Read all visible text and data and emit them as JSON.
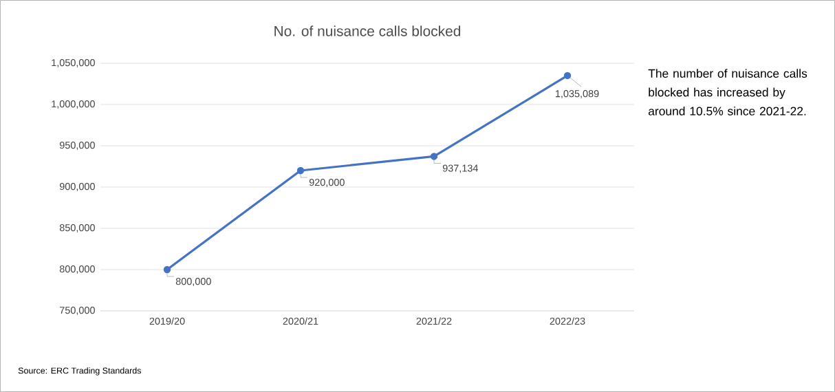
{
  "chart_data": {
    "type": "line",
    "title": "No. of nuisance calls blocked",
    "categories": [
      "2019/20",
      "2020/21",
      "2021/22",
      "2022/23"
    ],
    "series": [
      {
        "color": "#4472c4",
        "values": [
          800000,
          920000,
          937134,
          1035089
        ],
        "value_labels": [
          "800,000",
          "920,000",
          "937,134",
          "1,035,089"
        ]
      }
    ],
    "ylim": [
      750000,
      1050000
    ],
    "yticks": [
      {
        "value": 750000,
        "label": "750,000"
      },
      {
        "value": 800000,
        "label": "800,000"
      },
      {
        "value": 850000,
        "label": "850,000"
      },
      {
        "value": 900000,
        "label": "900,000"
      },
      {
        "value": 950000,
        "label": "950,000"
      },
      {
        "value": 1000000,
        "label": "1,000,000"
      },
      {
        "value": 1050000,
        "label": "1,050,000"
      }
    ],
    "grid": "y",
    "marker": "circle",
    "line_style": "solid",
    "annotations": [
      "The number of nuisance calls blocked has increased by around 10.5% since 2021-22.",
      "Source: ERC Trading Standards"
    ]
  }
}
